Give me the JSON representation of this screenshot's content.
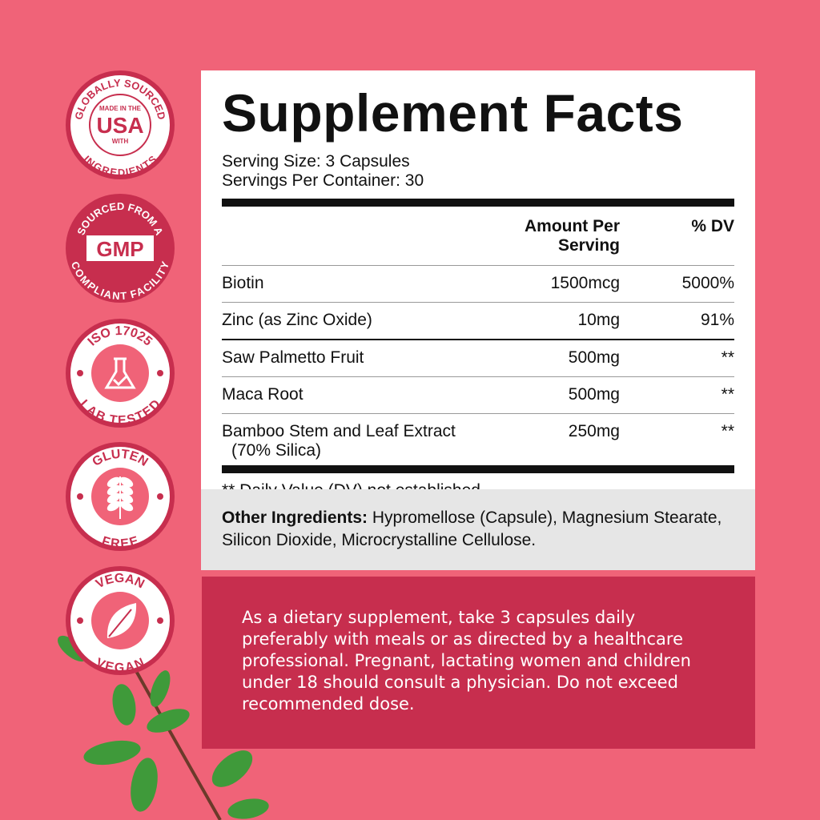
{
  "badges": [
    {
      "top": "GLOBALLY SOURCED",
      "line1": "MADE IN THE",
      "center": "USA",
      "line2": "WITH",
      "bottom": "INGREDIENTS"
    },
    {
      "top": "SOURCED FROM A",
      "center": "GMP",
      "bottom": "COMPLIANT FACILITY"
    },
    {
      "top": "ISO 17025",
      "bottom": "LAB TESTED",
      "icon": "flask-check-icon"
    },
    {
      "top": "GLUTEN",
      "bottom": "FREE",
      "icon": "wheat-icon"
    },
    {
      "top": "VEGAN",
      "bottom": "VEGAN",
      "icon": "leaf-icon"
    }
  ],
  "facts": {
    "title": "Supplement Facts",
    "serving_size": "Serving Size: 3 Capsules",
    "servings_per_container": "Servings Per Container: 30",
    "header": {
      "amount": "Amount Per Serving",
      "dv": "% DV"
    },
    "rows": [
      {
        "name": "Biotin",
        "amount": "1500mcg",
        "dv": "5000%"
      },
      {
        "name": "Zinc (as Zinc Oxide)",
        "amount": "10mg",
        "dv": "91%"
      },
      {
        "name": "Saw Palmetto Fruit",
        "amount": "500mg",
        "dv": "**"
      },
      {
        "name": "Maca Root",
        "amount": "500mg",
        "dv": "**"
      },
      {
        "name": "Bamboo Stem and Leaf Extract",
        "sub": "(70% Silica)",
        "amount": "250mg",
        "dv": "**"
      }
    ],
    "footnote": "** Daily Value (DV) not established."
  },
  "other": {
    "label": "Other Ingredients:",
    "text": " Hypromellose (Capsule), Magnesium Stearate, Silicon Dioxide, Microcrystalline Cellulose."
  },
  "directions": "As a dietary supplement, take 3 capsules daily preferably with meals or as directed by a healthcare professional. Pregnant, lactating women and children under 18 should consult a physician. Do not exceed recommended dose.",
  "colors": {
    "background": "#f06378",
    "accent": "#c72e4e"
  }
}
